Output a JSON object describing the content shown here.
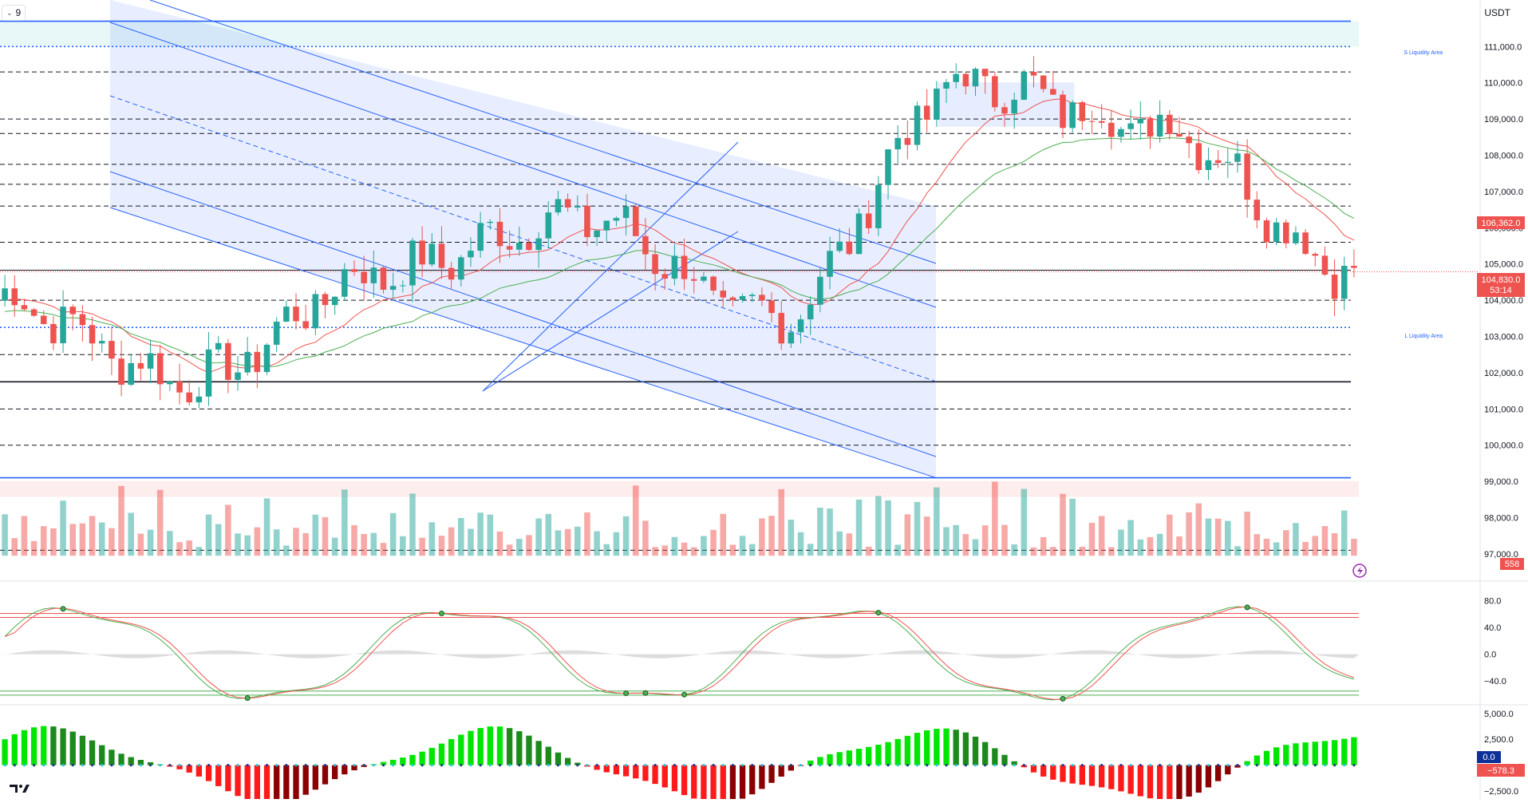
{
  "header": {
    "interval_label": "9",
    "currency": "USDT"
  },
  "colors": {
    "up": "#26a69a",
    "down": "#ef5350",
    "channel": "#2962ff",
    "ema_fast": "#ef5350",
    "ema_slow": "#4caf50",
    "grid": "#131722",
    "vol_up": "#26a69a",
    "vol_down": "#ef5350",
    "hist_up_strong": "#00e600",
    "hist_up_weak": "#1b8a1b",
    "hist_down_strong": "#ff1a1a",
    "hist_down_weak": "#8b0000"
  },
  "levels": {
    "s_liquidity_label": "S Liquidity Area",
    "l_liquidity_label": "L Liquidity Area"
  },
  "price_axis": {
    "ticks": [
      "111,000.0",
      "110,000.0",
      "109,000.0",
      "108,000.0",
      "107,000.0",
      "106,000.0",
      "105,000.0",
      "104,000.0",
      "103,000.0",
      "102,000.0",
      "101,000.0",
      "100,000.0",
      "99,000.0",
      "98,000.0",
      "97,000.0"
    ],
    "badge_ema": "106,362.0",
    "badge_price": "104,830.0",
    "badge_timer": "53:14",
    "badge_volume": "558"
  },
  "osc_axis": {
    "ticks": [
      "80.0",
      "40.0",
      "0.0",
      "−40.0"
    ]
  },
  "macd_axis": {
    "ticks": [
      "5,000.0",
      "2,500.0",
      "−2,500.0"
    ],
    "badge_zero": "0.0",
    "badge_value": "−578.3"
  },
  "chart_data": {
    "type": "candlestick",
    "ylim": [
      96800,
      111800
    ],
    "candle_count": 140,
    "key_prices": [
      104000,
      101800,
      104800,
      106300,
      103500,
      110000,
      108800,
      104830
    ],
    "levels": [
      111700,
      111000,
      110300,
      109000,
      108600,
      107750,
      107200,
      106600,
      105600,
      104830,
      104000,
      103250,
      102500,
      101750,
      101000,
      100000,
      99100,
      97100
    ],
    "oscillator": {
      "ylim": [
        -60,
        95
      ],
      "upper_band": 55,
      "lower_band": -55
    },
    "macd": {
      "ylim": [
        -3200,
        5300
      ]
    }
  }
}
